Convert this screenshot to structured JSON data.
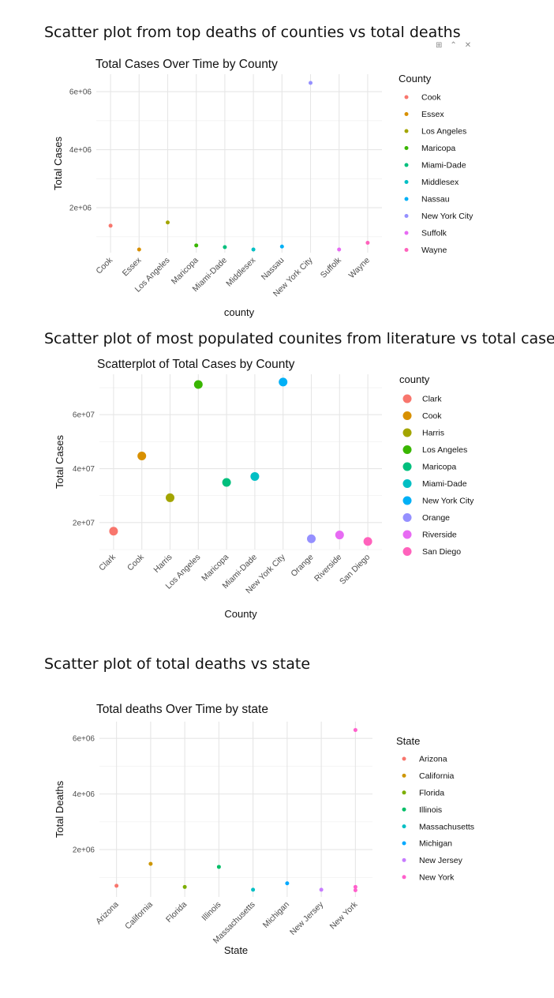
{
  "headings": [
    "Scatter plot from top deaths of counties vs total deaths",
    "Scatter plot of most populated counites from literature vs total cases",
    "Scatter plot of total deaths vs state"
  ],
  "toolbar": {
    "icons": [
      "grid-icon",
      "collapse-icon",
      "close-icon"
    ],
    "glyphs": [
      "⊞",
      "⌃",
      "✕"
    ]
  },
  "chart_data": [
    {
      "type": "scatter",
      "title": "Total Cases Over Time by County",
      "xlabel": "county",
      "ylabel": "Total Cases",
      "legend_title": "County",
      "legend_position": "right",
      "grid": true,
      "categories": [
        "Cook",
        "Essex",
        "Los Angeles",
        "Maricopa",
        "Miami-Dade",
        "Middlesex",
        "Nassau",
        "New York City",
        "Suffolk",
        "Wayne"
      ],
      "yticks": [
        2000000,
        4000000,
        6000000
      ],
      "ytick_labels": [
        "2e+06",
        "4e+06",
        "6e+06"
      ],
      "ylim": [
        450000,
        6600000
      ],
      "colors": [
        "#F8766D",
        "#D89000",
        "#A3A500",
        "#39B600",
        "#00BF7D",
        "#00BFC4",
        "#00B0F6",
        "#9590FF",
        "#E76BF3",
        "#FF62BC"
      ],
      "points": [
        {
          "x": "Cook",
          "y": 1380000
        },
        {
          "x": "Essex",
          "y": 560000
        },
        {
          "x": "Los Angeles",
          "y": 1490000
        },
        {
          "x": "Maricopa",
          "y": 700000
        },
        {
          "x": "Miami-Dade",
          "y": 640000
        },
        {
          "x": "Middlesex",
          "y": 560000
        },
        {
          "x": "Nassau",
          "y": 660000
        },
        {
          "x": "New York City",
          "y": 6300000
        },
        {
          "x": "Suffolk",
          "y": 560000
        },
        {
          "x": "Wayne",
          "y": 790000
        }
      ]
    },
    {
      "type": "scatter",
      "title": "Scatterplot of Total Cases by County",
      "xlabel": "County",
      "ylabel": "Total Cases",
      "legend_title": "county",
      "legend_position": "right",
      "grid": true,
      "categories": [
        "Clark",
        "Cook",
        "Harris",
        "Los Angeles",
        "Maricopa",
        "Miami-Dade",
        "New York City",
        "Orange",
        "Riverside",
        "San Diego"
      ],
      "yticks": [
        20000000,
        40000000,
        60000000
      ],
      "ytick_labels": [
        "2e+07",
        "4e+07",
        "6e+07"
      ],
      "ylim": [
        10000000,
        75000000
      ],
      "colors": [
        "#F8766D",
        "#D89000",
        "#A3A500",
        "#39B600",
        "#00BF7D",
        "#00BFC4",
        "#00B0F6",
        "#9590FF",
        "#E76BF3",
        "#FF62BC"
      ],
      "points": [
        {
          "x": "Clark",
          "y": 16800000
        },
        {
          "x": "Cook",
          "y": 44700000
        },
        {
          "x": "Harris",
          "y": 29200000
        },
        {
          "x": "Los Angeles",
          "y": 71200000
        },
        {
          "x": "Maricopa",
          "y": 34900000
        },
        {
          "x": "Miami-Dade",
          "y": 37100000
        },
        {
          "x": "New York City",
          "y": 72100000
        },
        {
          "x": "Orange",
          "y": 14000000
        },
        {
          "x": "Riverside",
          "y": 15400000
        },
        {
          "x": "San Diego",
          "y": 13000000
        }
      ]
    },
    {
      "type": "scatter",
      "title": "Total deaths Over Time by state",
      "xlabel": "State",
      "ylabel": "Total Deaths",
      "legend_title": "State",
      "legend_position": "right",
      "grid": true,
      "categories": [
        "Arizona",
        "California",
        "Florida",
        "Illinois",
        "Massachusetts",
        "Michigan",
        "New Jersey",
        "New York"
      ],
      "yticks": [
        2000000,
        4000000,
        6000000
      ],
      "ytick_labels": [
        "2e+06",
        "4e+06",
        "6e+06"
      ],
      "ylim": [
        300000,
        6600000
      ],
      "colors": [
        "#F8766D",
        "#CD9600",
        "#7CAE00",
        "#00BE67",
        "#00BFC4",
        "#00A9FF",
        "#C77CFF",
        "#FF61CC"
      ],
      "points": [
        {
          "x": "Arizona",
          "y": 700000
        },
        {
          "x": "California",
          "y": 1490000
        },
        {
          "x": "Florida",
          "y": 660000
        },
        {
          "x": "Illinois",
          "y": 1380000
        },
        {
          "x": "Massachusetts",
          "y": 560000
        },
        {
          "x": "Michigan",
          "y": 790000
        },
        {
          "x": "New Jersey",
          "y": 560000
        },
        {
          "x": "New York",
          "y": 6300000
        },
        {
          "x": "New York",
          "y": 660000
        },
        {
          "x": "New York",
          "y": 540000
        }
      ]
    }
  ]
}
